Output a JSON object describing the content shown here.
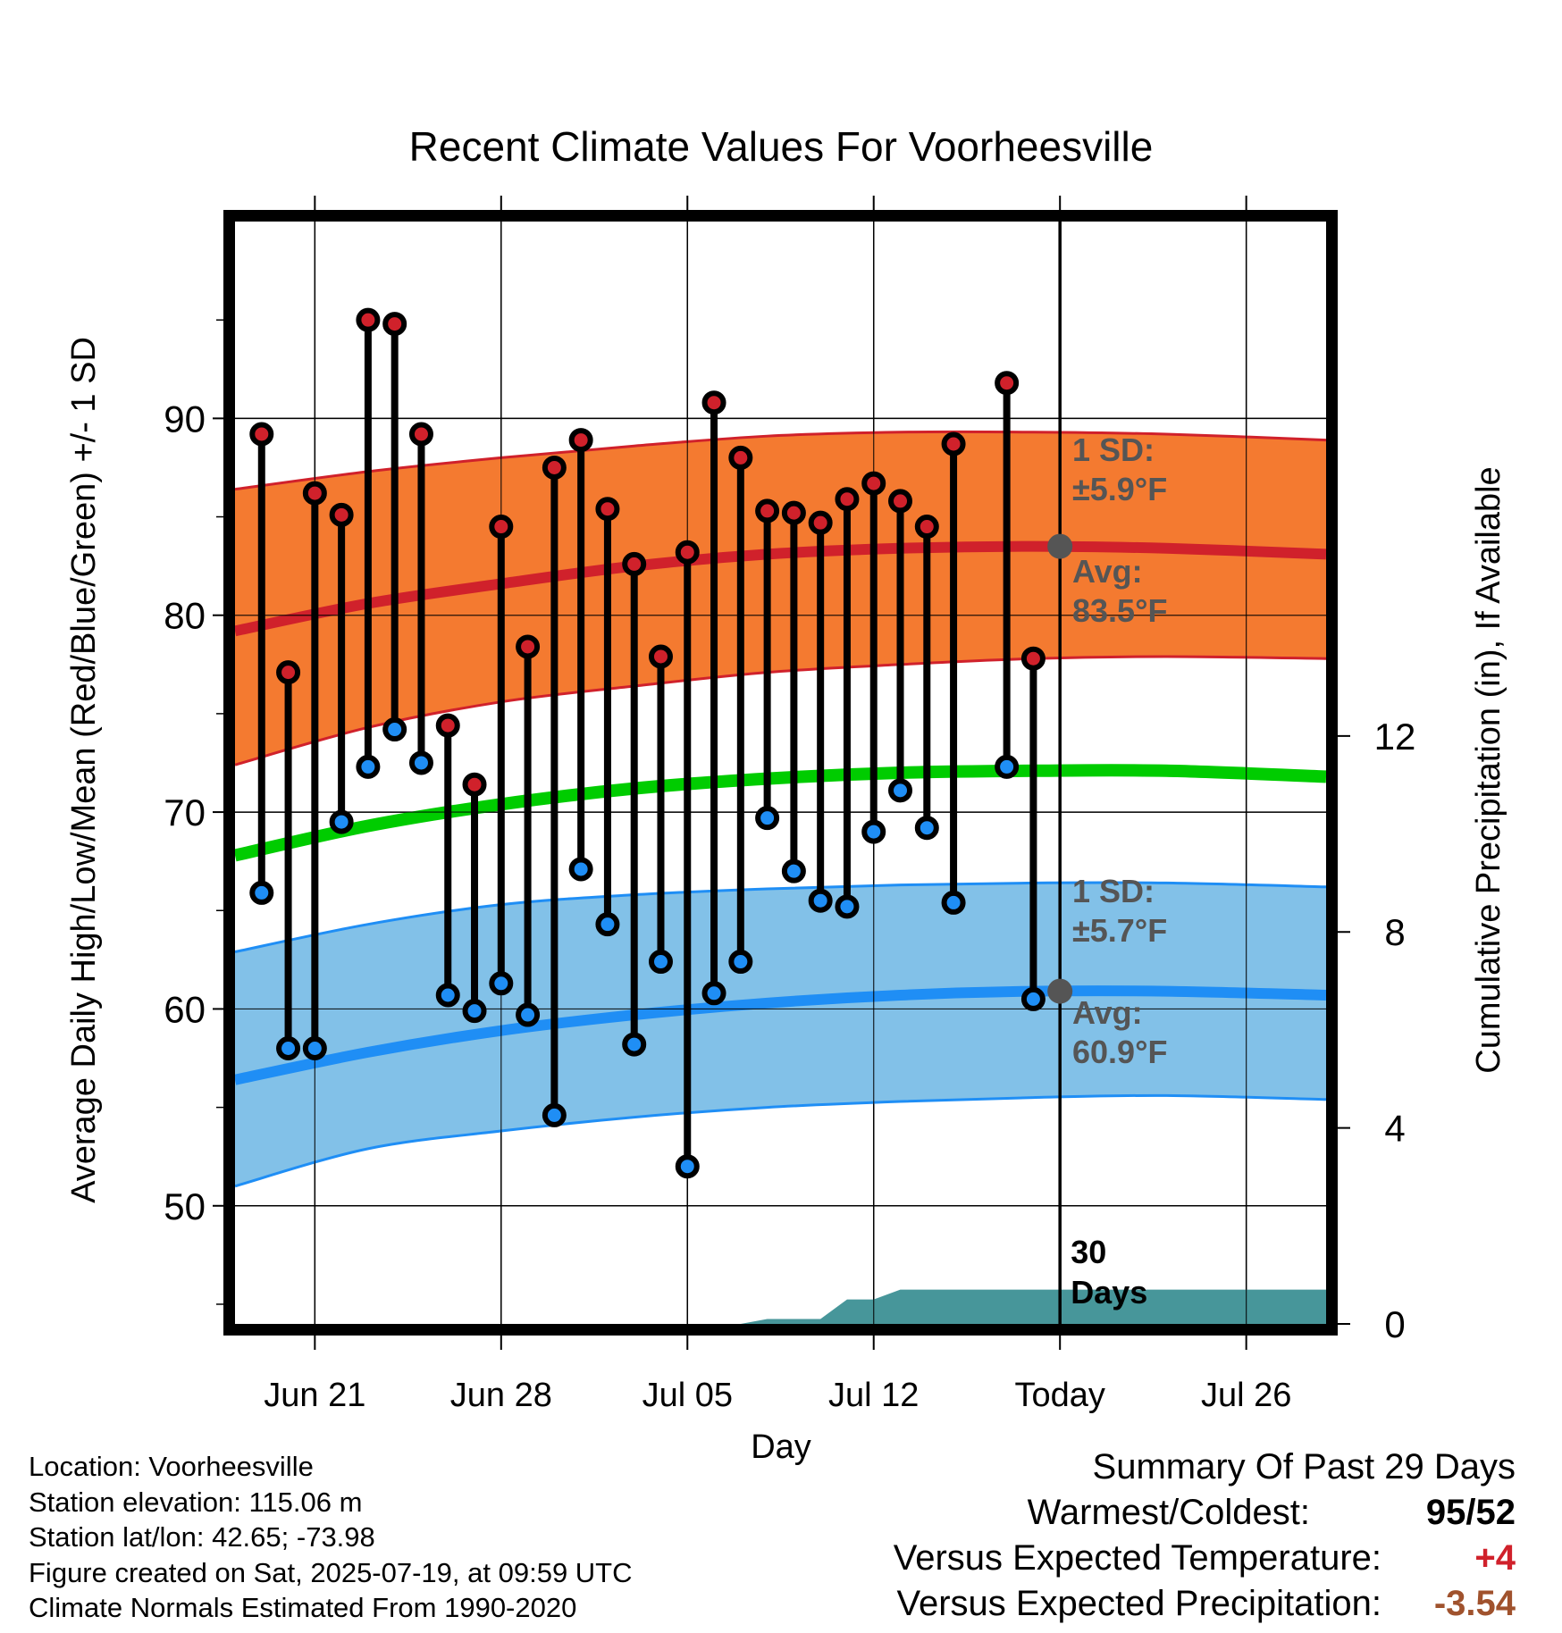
{
  "chart_data": {
    "type": "line",
    "title": "Recent Climate Values For Voorheesville",
    "xlabel": "Day",
    "ylabel": "Average Daily High/Low/Mean (Red/Blue/Green) +/- 1 SD",
    "y2label": "Cumulative Precipitation (in), If Available",
    "x_range": [
      "2025-06-18",
      "2025-07-29"
    ],
    "ylim": [
      44,
      100
    ],
    "y2lim": [
      0,
      22.5
    ],
    "y_ticks": [
      "50",
      "60",
      "70",
      "80",
      "90"
    ],
    "y2_ticks": [
      "0",
      "4",
      "8",
      "12"
    ],
    "x_ticks": [
      {
        "date": "2025-06-21",
        "label": "Jun 21"
      },
      {
        "date": "2025-06-28",
        "label": "Jun 28"
      },
      {
        "date": "2025-07-05",
        "label": "Jul 05"
      },
      {
        "date": "2025-07-12",
        "label": "Jul 12"
      },
      {
        "date": "2025-07-19",
        "label": "Today"
      },
      {
        "date": "2025-07-26",
        "label": "Jul 26"
      }
    ],
    "grid": true,
    "today": "2025-07-19",
    "today_label_line1": "30",
    "today_label_line2": "Days",
    "daily": [
      {
        "date": "2025-06-19",
        "high": 89.2,
        "low": 65.9
      },
      {
        "date": "2025-06-20",
        "high": 77.1,
        "low": 58.0
      },
      {
        "date": "2025-06-21",
        "high": 86.2,
        "low": 58.0
      },
      {
        "date": "2025-06-22",
        "high": 85.1,
        "low": 69.5
      },
      {
        "date": "2025-06-23",
        "high": 95.0,
        "low": 72.3
      },
      {
        "date": "2025-06-24",
        "high": 94.8,
        "low": 74.2
      },
      {
        "date": "2025-06-25",
        "high": 89.2,
        "low": 72.5
      },
      {
        "date": "2025-06-26",
        "high": 74.4,
        "low": 60.7
      },
      {
        "date": "2025-06-27",
        "high": 71.4,
        "low": 59.9
      },
      {
        "date": "2025-06-28",
        "high": 84.5,
        "low": 61.3
      },
      {
        "date": "2025-06-29",
        "high": 78.4,
        "low": 59.7
      },
      {
        "date": "2025-06-30",
        "high": 87.5,
        "low": 54.6
      },
      {
        "date": "2025-07-01",
        "high": 88.9,
        "low": 67.1
      },
      {
        "date": "2025-07-02",
        "high": 85.4,
        "low": 64.3
      },
      {
        "date": "2025-07-03",
        "high": 82.6,
        "low": 58.2
      },
      {
        "date": "2025-07-04",
        "high": 77.9,
        "low": 62.4
      },
      {
        "date": "2025-07-05",
        "high": 83.2,
        "low": 52.0
      },
      {
        "date": "2025-07-06",
        "high": 90.8,
        "low": 60.8
      },
      {
        "date": "2025-07-07",
        "high": 88.0,
        "low": 62.4
      },
      {
        "date": "2025-07-08",
        "high": 85.3,
        "low": 69.7
      },
      {
        "date": "2025-07-09",
        "high": 85.2,
        "low": 67.0
      },
      {
        "date": "2025-07-10",
        "high": 84.7,
        "low": 65.5
      },
      {
        "date": "2025-07-11",
        "high": 85.9,
        "low": 65.2
      },
      {
        "date": "2025-07-12",
        "high": 86.7,
        "low": 69.0
      },
      {
        "date": "2025-07-13",
        "high": 85.8,
        "low": 71.1
      },
      {
        "date": "2025-07-14",
        "high": 84.5,
        "low": 69.2
      },
      {
        "date": "2025-07-15",
        "high": 88.7,
        "low": 65.4
      },
      {
        "date": "2025-07-17",
        "high": 91.8,
        "low": 72.3
      },
      {
        "date": "2025-07-18",
        "high": 77.8,
        "low": 60.5
      }
    ],
    "normal_high": {
      "x": [
        "2025-06-18",
        "2025-06-23",
        "2025-06-28",
        "2025-07-03",
        "2025-07-08",
        "2025-07-13",
        "2025-07-18",
        "2025-07-23",
        "2025-07-29"
      ],
      "avg": [
        79.2,
        80.6,
        81.6,
        82.5,
        83.1,
        83.4,
        83.5,
        83.4,
        83.1
      ],
      "sd_upper": [
        86.4,
        87.3,
        88.0,
        88.6,
        89.1,
        89.3,
        89.3,
        89.2,
        88.9
      ],
      "sd_lower": [
        72.4,
        74.3,
        75.6,
        76.4,
        77.1,
        77.5,
        77.8,
        77.9,
        77.8
      ]
    },
    "normal_mean": {
      "x": [
        "2025-06-18",
        "2025-06-23",
        "2025-06-28",
        "2025-07-03",
        "2025-07-08",
        "2025-07-13",
        "2025-07-18",
        "2025-07-23",
        "2025-07-29"
      ],
      "values": [
        67.8,
        69.3,
        70.4,
        71.2,
        71.7,
        72.0,
        72.1,
        72.1,
        71.8
      ]
    },
    "normal_low": {
      "x": [
        "2025-06-18",
        "2025-06-23",
        "2025-06-28",
        "2025-07-03",
        "2025-07-08",
        "2025-07-13",
        "2025-07-18",
        "2025-07-23",
        "2025-07-29"
      ],
      "avg": [
        56.4,
        57.8,
        58.9,
        59.7,
        60.3,
        60.7,
        60.9,
        60.9,
        60.7
      ],
      "sd_upper": [
        62.9,
        64.3,
        65.3,
        65.8,
        66.1,
        66.3,
        66.4,
        66.4,
        66.2
      ],
      "sd_lower": [
        51.0,
        52.9,
        53.8,
        54.5,
        55.0,
        55.3,
        55.5,
        55.6,
        55.4
      ]
    },
    "precip_cumulative": {
      "x": [
        "2025-07-07",
        "2025-07-08",
        "2025-07-10",
        "2025-07-11",
        "2025-07-12",
        "2025-07-13",
        "2025-07-14",
        "2025-07-29"
      ],
      "values": [
        0.0,
        0.1,
        0.1,
        0.5,
        0.5,
        0.7,
        0.7,
        0.7
      ]
    },
    "annotations": {
      "high_sd_title": "1 SD:",
      "high_sd_value": "±5.9°F",
      "high_avg_title": "Avg:",
      "high_avg_value": "83.5°F",
      "low_sd_title": "1 SD:",
      "low_sd_value": "±5.7°F",
      "low_avg_title": "Avg:",
      "low_avg_value": "60.9°F"
    },
    "colors": {
      "high_band": "#f47a30",
      "high_line": "#d0212b",
      "mean_line": "#00cc00",
      "low_band": "#82c1e8",
      "low_line": "#1f8ef5",
      "high_point": "#d0212b",
      "low_point": "#1f8ef5",
      "precip_fill": "#47969a",
      "annotation_text": "#555555"
    }
  },
  "footer": {
    "location": "Location: Voorheesville",
    "elevation": "Station elevation: 115.06 m",
    "latlon": "Station lat/lon: 42.65; -73.98",
    "created": "Figure created on Sat, 2025-07-19, at 09:59 UTC",
    "normals": "Climate Normals Estimated From 1990-2020"
  },
  "summary": {
    "title": "Summary Of Past 29 Days",
    "warm_cold_label": "Warmest/Coldest:",
    "warm_cold_value": "95/52",
    "temp_label": "Versus Expected Temperature:",
    "temp_value": "+4",
    "precip_label": "Versus Expected Precipitation:",
    "precip_value": "-3.54",
    "temp_color": "#d0212b",
    "precip_color": "#a0522d"
  }
}
